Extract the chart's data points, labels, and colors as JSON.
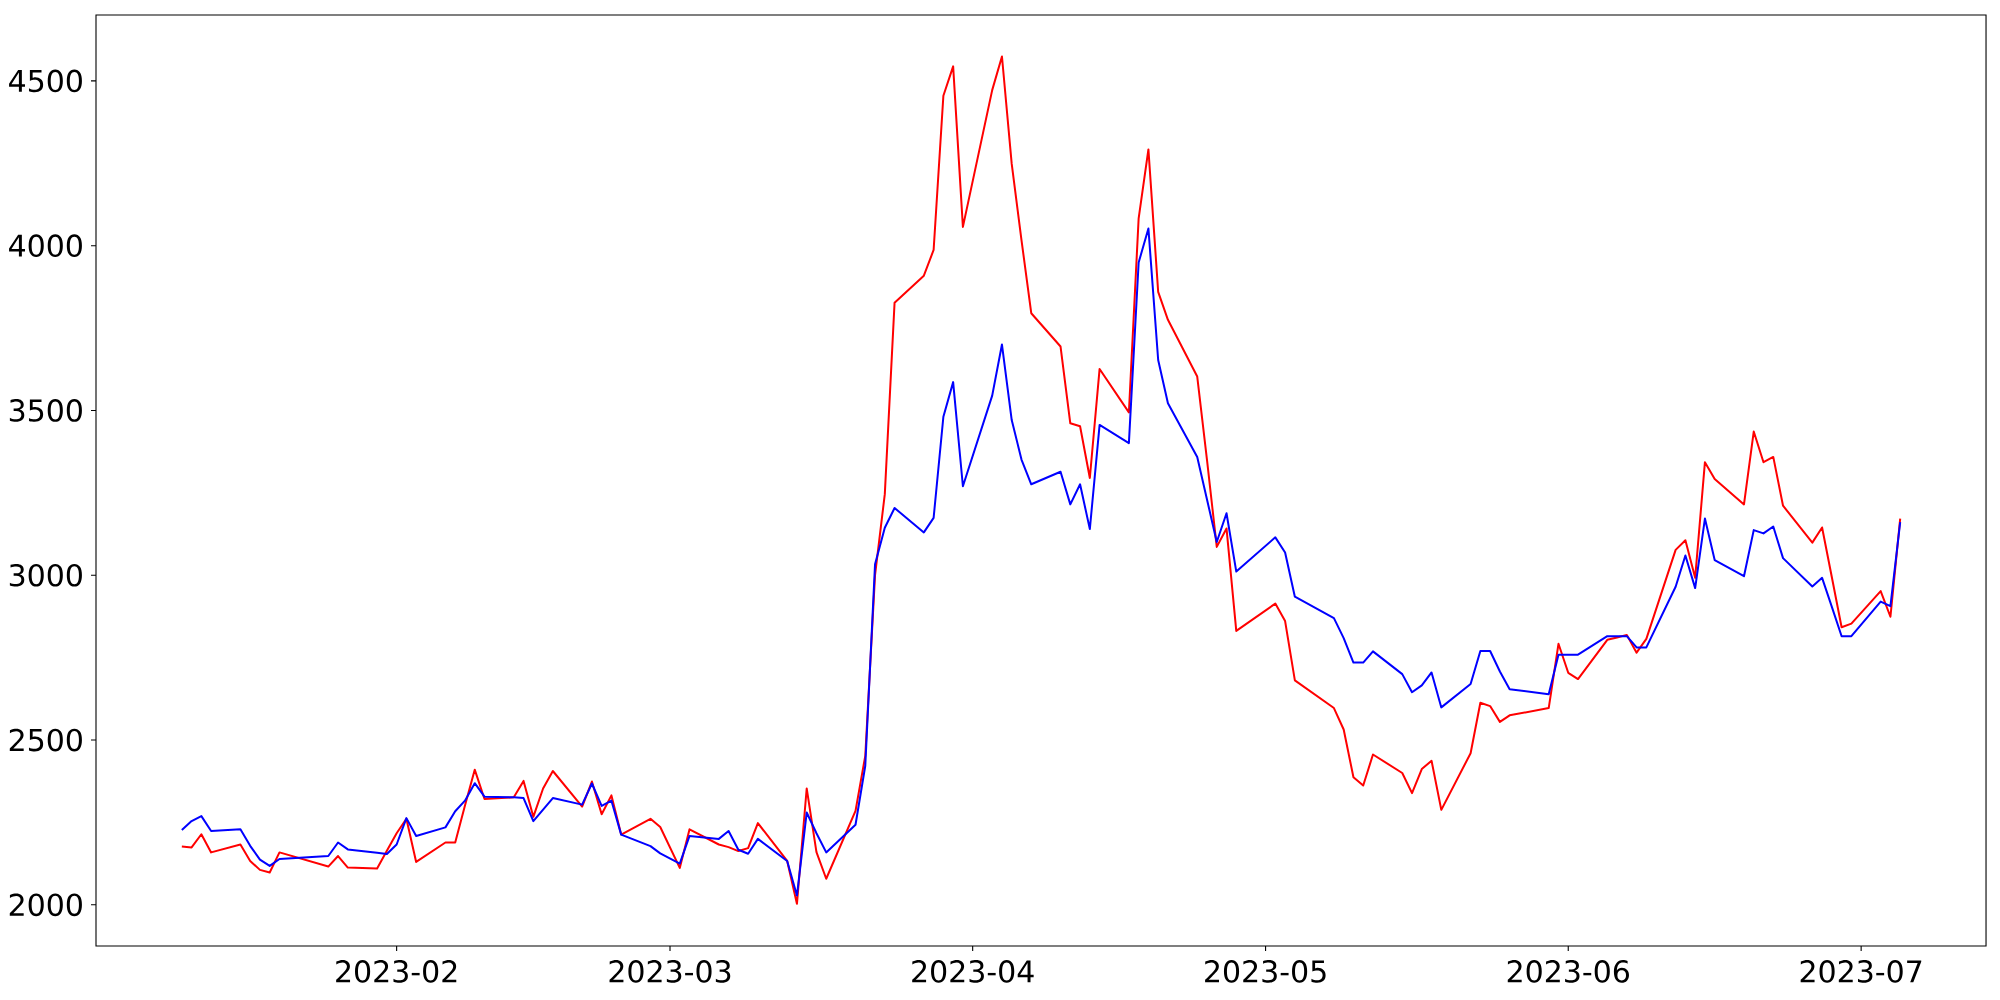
{
  "chart_data": {
    "type": "line",
    "xlim": [
      "2023-01-01T05:00",
      "2023-07-13T19:00"
    ],
    "ylim": [
      1875,
      4700
    ],
    "xticks": [
      {
        "value": "2023-02-01",
        "label": "2023-02"
      },
      {
        "value": "2023-03-01",
        "label": "2023-03"
      },
      {
        "value": "2023-04-01",
        "label": "2023-04"
      },
      {
        "value": "2023-05-01",
        "label": "2023-05"
      },
      {
        "value": "2023-06-01",
        "label": "2023-06"
      },
      {
        "value": "2023-07-01",
        "label": "2023-07"
      }
    ],
    "yticks": [
      2000,
      2500,
      3000,
      3500,
      4000,
      4500
    ],
    "x": [
      "2023-01-10",
      "2023-01-11",
      "2023-01-12",
      "2023-01-13",
      "2023-01-16",
      "2023-01-17",
      "2023-01-18",
      "2023-01-19",
      "2023-01-20",
      "2023-01-25",
      "2023-01-26",
      "2023-01-27",
      "2023-01-30",
      "2023-01-31",
      "2023-02-01",
      "2023-02-02",
      "2023-02-03",
      "2023-02-06",
      "2023-02-07",
      "2023-02-08",
      "2023-02-09",
      "2023-02-10",
      "2023-02-13",
      "2023-02-14",
      "2023-02-15",
      "2023-02-16",
      "2023-02-17",
      "2023-02-20",
      "2023-02-21",
      "2023-02-22",
      "2023-02-23",
      "2023-02-24",
      "2023-02-27",
      "2023-02-28",
      "2023-03-02",
      "2023-03-03",
      "2023-03-06",
      "2023-03-07",
      "2023-03-08",
      "2023-03-09",
      "2023-03-10",
      "2023-03-13",
      "2023-03-14",
      "2023-03-15",
      "2023-03-16",
      "2023-03-17",
      "2023-03-20",
      "2023-03-21",
      "2023-03-22",
      "2023-03-23",
      "2023-03-24",
      "2023-03-27",
      "2023-03-28",
      "2023-03-29",
      "2023-03-30",
      "2023-03-31",
      "2023-04-03",
      "2023-04-04",
      "2023-04-05",
      "2023-04-06",
      "2023-04-07",
      "2023-04-10",
      "2023-04-11",
      "2023-04-12",
      "2023-04-13",
      "2023-04-14",
      "2023-04-17",
      "2023-04-18",
      "2023-04-19",
      "2023-04-20",
      "2023-04-21",
      "2023-04-24",
      "2023-04-25",
      "2023-04-26",
      "2023-04-27",
      "2023-04-28",
      "2023-05-02",
      "2023-05-03",
      "2023-05-04",
      "2023-05-08",
      "2023-05-09",
      "2023-05-10",
      "2023-05-11",
      "2023-05-12",
      "2023-05-15",
      "2023-05-16",
      "2023-05-17",
      "2023-05-18",
      "2023-05-19",
      "2023-05-22",
      "2023-05-23",
      "2023-05-24",
      "2023-05-25",
      "2023-05-26",
      "2023-05-30",
      "2023-05-31",
      "2023-06-01",
      "2023-06-02",
      "2023-06-05",
      "2023-06-06",
      "2023-06-07",
      "2023-06-08",
      "2023-06-09",
      "2023-06-12",
      "2023-06-13",
      "2023-06-14",
      "2023-06-15",
      "2023-06-16",
      "2023-06-19",
      "2023-06-20",
      "2023-06-21",
      "2023-06-22",
      "2023-06-23",
      "2023-06-26",
      "2023-06-27",
      "2023-06-28",
      "2023-06-29",
      "2023-06-30",
      "2023-07-03",
      "2023-07-04",
      "2023-07-05"
    ],
    "series": [
      {
        "color": "#ff0000",
        "values": [
          2177,
          2174,
          2214,
          2159,
          2183,
          2133,
          2106,
          2098,
          2159,
          2116,
          2148,
          2113,
          2110,
          2164,
          2217,
          2261,
          2130,
          2189,
          2189,
          2301,
          2410,
          2321,
          2326,
          2376,
          2267,
          2353,
          2406,
          2298,
          2374,
          2275,
          2332,
          2213,
          2261,
          2236,
          2112,
          2229,
          2183,
          2175,
          2163,
          2172,
          2248,
          2133,
          2003,
          2353,
          2160,
          2079,
          2285,
          2452,
          3000,
          3246,
          3827,
          3909,
          3987,
          4455,
          4544,
          4057,
          4472,
          4574,
          4248,
          4017,
          3795,
          3694,
          3461,
          3452,
          3295,
          3626,
          3494,
          4083,
          4292,
          3860,
          3775,
          3603,
          3350,
          3086,
          3142,
          2831,
          2914,
          2861,
          2681,
          2597,
          2532,
          2387,
          2362,
          2456,
          2400,
          2339,
          2412,
          2437,
          2288,
          2460,
          2613,
          2603,
          2555,
          2575,
          2597,
          2792,
          2704,
          2685,
          2804,
          2811,
          2819,
          2765,
          2807,
          3077,
          3106,
          2992,
          3343,
          3292,
          3215,
          3436,
          3343,
          3359,
          3211,
          3099,
          3145,
          2994,
          2842,
          2853,
          2952,
          2874,
          3172
        ]
      },
      {
        "color": "#0000ff",
        "values": [
          2227,
          2254,
          2269,
          2224,
          2229,
          2179,
          2137,
          2118,
          2139,
          2148,
          2189,
          2168,
          2158,
          2154,
          2183,
          2263,
          2209,
          2235,
          2284,
          2316,
          2369,
          2328,
          2326,
          2324,
          2254,
          2289,
          2324,
          2304,
          2368,
          2300,
          2316,
          2213,
          2178,
          2156,
          2125,
          2209,
          2200,
          2224,
          2167,
          2155,
          2200,
          2133,
          2028,
          2280,
          2217,
          2159,
          2243,
          2422,
          3033,
          3144,
          3204,
          3130,
          3174,
          3481,
          3586,
          3270,
          3545,
          3700,
          3471,
          3351,
          3276,
          3314,
          3215,
          3276,
          3140,
          3456,
          3401,
          3949,
          4052,
          3653,
          3522,
          3359,
          3230,
          3101,
          3188,
          3011,
          3115,
          3069,
          2935,
          2870,
          2809,
          2735,
          2735,
          2769,
          2700,
          2645,
          2666,
          2705,
          2599,
          2670,
          2770,
          2770,
          2708,
          2654,
          2639,
          2759,
          2759,
          2759,
          2815,
          2815,
          2815,
          2781,
          2781,
          2965,
          3060,
          2961,
          3172,
          3046,
          2997,
          3137,
          3127,
          3148,
          3052,
          2966,
          2992,
          2904,
          2815,
          2815,
          2920,
          2906,
          3161
        ]
      }
    ]
  }
}
